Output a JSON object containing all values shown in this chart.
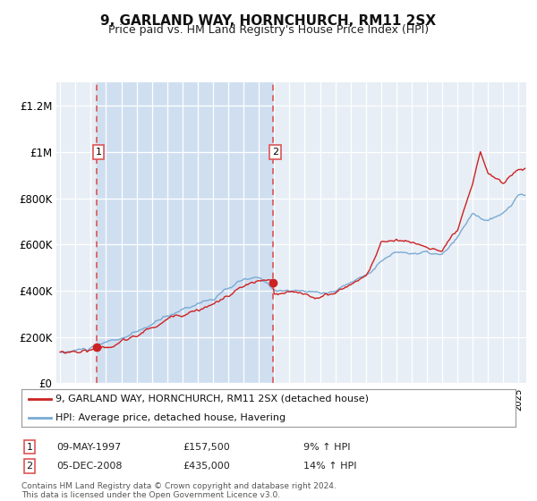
{
  "title": "9, GARLAND WAY, HORNCHURCH, RM11 2SX",
  "subtitle": "Price paid vs. HM Land Registry's House Price Index (HPI)",
  "ylim": [
    0,
    1300000
  ],
  "xlim_start": 1994.75,
  "xlim_end": 2025.5,
  "yticks": [
    0,
    200000,
    400000,
    600000,
    800000,
    1000000,
    1200000
  ],
  "ytick_labels": [
    "£0",
    "£200K",
    "£400K",
    "£600K",
    "£800K",
    "£1M",
    "£1.2M"
  ],
  "bg_color": "#e8eef5",
  "shade_color": "#d0dff0",
  "grid_color": "#ffffff",
  "hpi_color": "#7aaad4",
  "price_color": "#cc2222",
  "marker_color": "#cc2222",
  "dashed_line_color": "#dd5555",
  "transaction1": {
    "date": 1997.36,
    "price": 157500,
    "label": "1"
  },
  "transaction2": {
    "date": 2008.92,
    "price": 435000,
    "label": "2"
  },
  "legend_entry1": "9, GARLAND WAY, HORNCHURCH, RM11 2SX (detached house)",
  "legend_entry2": "HPI: Average price, detached house, Havering",
  "table_row1": [
    "1",
    "09-MAY-1997",
    "£157,500",
    "9% ↑ HPI"
  ],
  "table_row2": [
    "2",
    "05-DEC-2008",
    "£435,000",
    "14% ↑ HPI"
  ],
  "footnote": "Contains HM Land Registry data © Crown copyright and database right 2024.\nThis data is licensed under the Open Government Licence v3.0."
}
